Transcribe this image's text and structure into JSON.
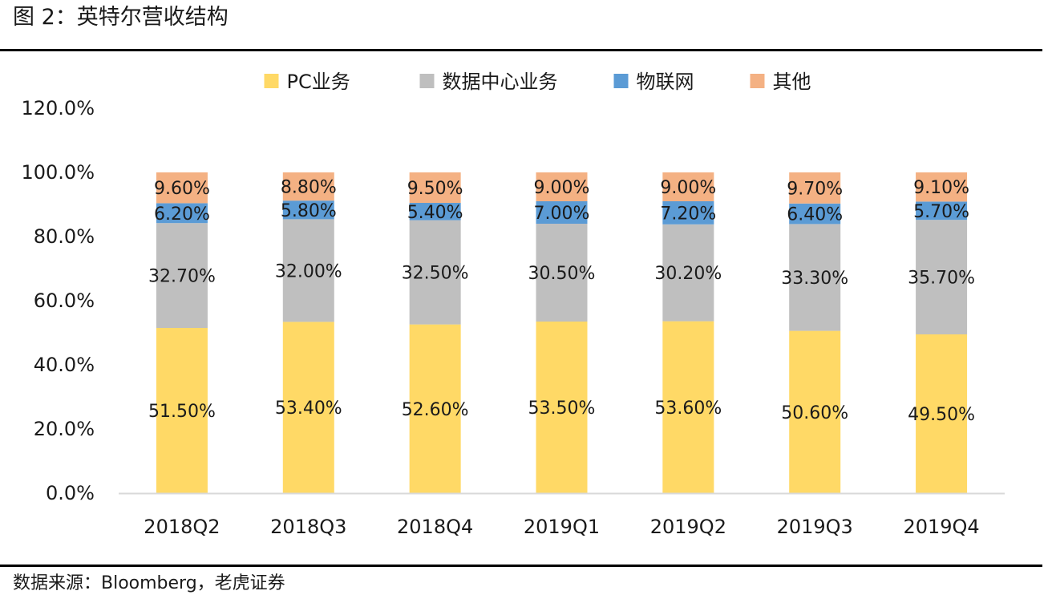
{
  "figure": {
    "title": "图 2：英特尔营收结构",
    "source": "数据来源：Bloomberg，老虎证券"
  },
  "chart_data": {
    "type": "bar",
    "stacked": true,
    "categories": [
      "2018Q2",
      "2018Q3",
      "2018Q4",
      "2019Q1",
      "2019Q2",
      "2019Q3",
      "2019Q4"
    ],
    "series": [
      {
        "name": "PC业务",
        "color": "#FFD966",
        "values": [
          51.5,
          53.4,
          52.6,
          53.5,
          53.6,
          50.6,
          49.5
        ],
        "labels": [
          "51.50%",
          "53.40%",
          "52.60%",
          "53.50%",
          "53.60%",
          "50.60%",
          "49.50%"
        ]
      },
      {
        "name": "数据中心业务",
        "color": "#BFBFBF",
        "values": [
          32.7,
          32.0,
          32.5,
          30.5,
          30.2,
          33.3,
          35.7
        ],
        "labels": [
          "32.70%",
          "32.00%",
          "32.50%",
          "30.50%",
          "30.20%",
          "33.30%",
          "35.70%"
        ]
      },
      {
        "name": "物联网",
        "color": "#5B9BD5",
        "values": [
          6.2,
          5.8,
          5.4,
          7.0,
          7.2,
          6.4,
          5.7
        ],
        "labels": [
          "6.20%",
          "5.80%",
          "5.40%",
          "7.00%",
          "7.20%",
          "6.40%",
          "5.70%"
        ]
      },
      {
        "name": "其他",
        "color": "#F4B183",
        "values": [
          9.6,
          8.8,
          9.5,
          9.0,
          9.0,
          9.7,
          9.1
        ],
        "labels": [
          "9.60%",
          "8.80%",
          "9.50%",
          "9.00%",
          "9.00%",
          "9.70%",
          "9.10%"
        ]
      }
    ],
    "ylim": [
      0,
      120
    ],
    "yticks": [
      "0.0%",
      "20.0%",
      "40.0%",
      "60.0%",
      "80.0%",
      "100.0%",
      "120.0%"
    ],
    "legend_position": "top",
    "grid": false
  }
}
